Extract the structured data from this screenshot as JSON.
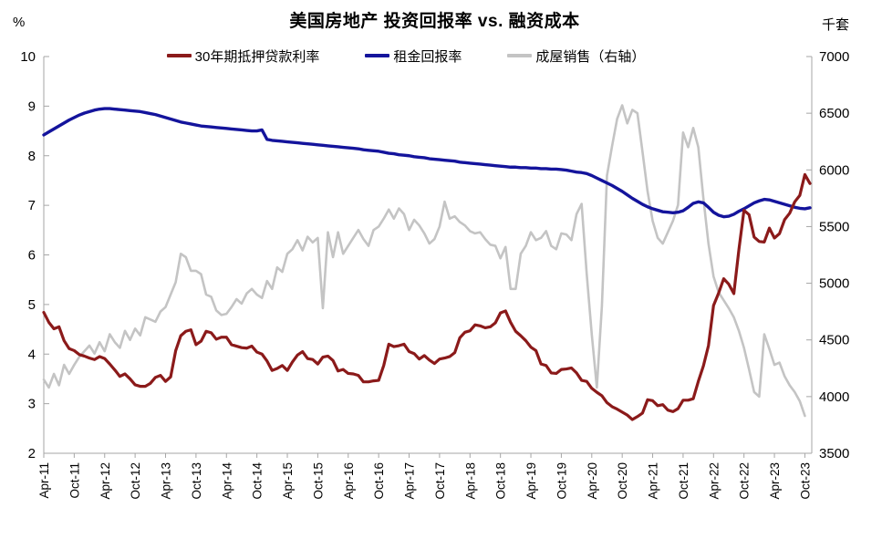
{
  "header": {
    "title": "美国房地产 投资回报率 vs. 融资成本",
    "left_unit": "%",
    "right_unit": "千套"
  },
  "legend": [
    {
      "id": "mortgage-rate",
      "label": "30年期抵押贷款利率",
      "color": "#8B1A1A"
    },
    {
      "id": "rent-yield",
      "label": "租金回报率",
      "color": "#14149C"
    },
    {
      "id": "existing-home-sales",
      "label": "成屋销售（右轴）",
      "color": "#C4C4C4"
    }
  ],
  "colors": {
    "axis": "#A6A6A6",
    "text": "#000000",
    "background": "#FFFFFF"
  },
  "chart_data": {
    "type": "line",
    "title": "美国房地产 投资回报率 vs. 融资成本",
    "x_frequency": "monthly",
    "x_start": "2011-04",
    "x_end": "2023-11",
    "x_tick_every_n_months": 6,
    "x_tick_labels": [
      "Apr-11",
      "Oct-11",
      "Apr-12",
      "Oct-12",
      "Apr-13",
      "Oct-13",
      "Apr-14",
      "Oct-14",
      "Apr-15",
      "Oct-15",
      "Apr-16",
      "Oct-16",
      "Apr-17",
      "Oct-17",
      "Apr-18",
      "Oct-18",
      "Apr-19",
      "Oct-19",
      "Apr-20",
      "Oct-20",
      "Apr-21",
      "Oct-21",
      "Apr-22",
      "Oct-22",
      "Apr-23",
      "Oct-23"
    ],
    "left_axis": {
      "unit": "%",
      "min": 2,
      "max": 10,
      "ticks": [
        10,
        9,
        8,
        7,
        6,
        5,
        4,
        3,
        2
      ]
    },
    "right_axis": {
      "unit": "千套",
      "min": 3500,
      "max": 7000,
      "ticks": [
        7000,
        6500,
        6000,
        5500,
        5000,
        4500,
        4000,
        3500
      ]
    },
    "grid": false,
    "legend_position": "top",
    "series": [
      {
        "name": "30年期抵押贷款利率",
        "axis": "left",
        "color": "#8B1A1A",
        "stroke_width": 3.2,
        "z": 3,
        "values": [
          4.84,
          4.64,
          4.51,
          4.55,
          4.27,
          4.11,
          4.07,
          3.99,
          3.96,
          3.92,
          3.89,
          3.95,
          3.91,
          3.8,
          3.68,
          3.55,
          3.6,
          3.5,
          3.38,
          3.35,
          3.35,
          3.41,
          3.53,
          3.57,
          3.45,
          3.54,
          4.07,
          4.37,
          4.46,
          4.49,
          4.19,
          4.26,
          4.46,
          4.43,
          4.3,
          4.34,
          4.34,
          4.19,
          4.16,
          4.13,
          4.12,
          4.16,
          4.04,
          4.0,
          3.86,
          3.67,
          3.71,
          3.77,
          3.67,
          3.84,
          3.98,
          4.05,
          3.91,
          3.89,
          3.8,
          3.94,
          3.96,
          3.87,
          3.66,
          3.69,
          3.61,
          3.6,
          3.57,
          3.44,
          3.44,
          3.46,
          3.47,
          3.77,
          4.2,
          4.15,
          4.17,
          4.2,
          4.05,
          4.01,
          3.9,
          3.97,
          3.88,
          3.81,
          3.9,
          3.92,
          3.95,
          4.03,
          4.33,
          4.44,
          4.47,
          4.59,
          4.57,
          4.53,
          4.55,
          4.63,
          4.83,
          4.87,
          4.64,
          4.46,
          4.37,
          4.27,
          4.14,
          4.07,
          3.8,
          3.77,
          3.62,
          3.61,
          3.69,
          3.7,
          3.72,
          3.62,
          3.47,
          3.45,
          3.31,
          3.23,
          3.16,
          3.02,
          2.94,
          2.89,
          2.83,
          2.77,
          2.68,
          2.74,
          2.81,
          3.08,
          3.06,
          2.96,
          2.98,
          2.87,
          2.84,
          2.9,
          3.07,
          3.07,
          3.1,
          3.45,
          3.76,
          4.17,
          4.98,
          5.23,
          5.52,
          5.41,
          5.22,
          6.11,
          6.9,
          6.81,
          6.36,
          6.27,
          6.26,
          6.54,
          6.34,
          6.43,
          6.71,
          6.84,
          7.07,
          7.2,
          7.62,
          7.44
        ]
      },
      {
        "name": "租金回报率",
        "axis": "left",
        "color": "#14149C",
        "stroke_width": 3.4,
        "z": 2,
        "values": [
          8.42,
          8.48,
          8.54,
          8.6,
          8.66,
          8.72,
          8.77,
          8.82,
          8.86,
          8.89,
          8.92,
          8.94,
          8.95,
          8.95,
          8.94,
          8.93,
          8.92,
          8.91,
          8.9,
          8.89,
          8.87,
          8.85,
          8.83,
          8.8,
          8.77,
          8.74,
          8.71,
          8.68,
          8.66,
          8.64,
          8.62,
          8.6,
          8.59,
          8.58,
          8.57,
          8.56,
          8.55,
          8.54,
          8.53,
          8.52,
          8.51,
          8.5,
          8.5,
          8.52,
          8.33,
          8.31,
          8.3,
          8.29,
          8.28,
          8.27,
          8.26,
          8.25,
          8.24,
          8.23,
          8.22,
          8.21,
          8.2,
          8.19,
          8.18,
          8.17,
          8.16,
          8.15,
          8.14,
          8.12,
          8.11,
          8.1,
          8.09,
          8.07,
          8.05,
          8.04,
          8.02,
          8.01,
          8.0,
          7.98,
          7.97,
          7.96,
          7.94,
          7.93,
          7.92,
          7.91,
          7.9,
          7.89,
          7.87,
          7.86,
          7.85,
          7.84,
          7.83,
          7.82,
          7.81,
          7.8,
          7.79,
          7.78,
          7.77,
          7.77,
          7.76,
          7.76,
          7.75,
          7.75,
          7.74,
          7.74,
          7.73,
          7.73,
          7.72,
          7.71,
          7.69,
          7.67,
          7.66,
          7.64,
          7.6,
          7.55,
          7.5,
          7.45,
          7.4,
          7.34,
          7.28,
          7.21,
          7.14,
          7.08,
          7.02,
          6.97,
          6.93,
          6.9,
          6.87,
          6.86,
          6.85,
          6.86,
          6.89,
          6.96,
          7.04,
          7.07,
          7.05,
          6.96,
          6.86,
          6.8,
          6.77,
          6.78,
          6.82,
          6.88,
          6.93,
          6.99,
          7.05,
          7.09,
          7.12,
          7.11,
          7.08,
          7.05,
          7.02,
          6.99,
          6.96,
          6.94,
          6.93,
          6.95
        ]
      },
      {
        "name": "成屋销售（右轴）",
        "axis": "right",
        "color": "#C4C4C4",
        "stroke_width": 2.6,
        "z": 1,
        "values": [
          4150,
          4080,
          4200,
          4100,
          4280,
          4200,
          4280,
          4350,
          4400,
          4450,
          4380,
          4480,
          4400,
          4550,
          4480,
          4430,
          4580,
          4500,
          4600,
          4540,
          4700,
          4680,
          4660,
          4750,
          4790,
          4900,
          5010,
          5260,
          5230,
          5110,
          5110,
          5080,
          4900,
          4880,
          4760,
          4720,
          4730,
          4790,
          4860,
          4820,
          4910,
          4950,
          4900,
          4870,
          5020,
          4950,
          5140,
          5100,
          5260,
          5300,
          5380,
          5290,
          5410,
          5360,
          5400,
          4780,
          5450,
          5230,
          5450,
          5260,
          5330,
          5400,
          5470,
          5390,
          5330,
          5470,
          5500,
          5570,
          5650,
          5570,
          5660,
          5610,
          5470,
          5560,
          5510,
          5440,
          5350,
          5390,
          5500,
          5720,
          5570,
          5590,
          5540,
          5510,
          5460,
          5440,
          5450,
          5390,
          5340,
          5330,
          5220,
          5320,
          4950,
          4950,
          5260,
          5330,
          5450,
          5380,
          5400,
          5460,
          5330,
          5300,
          5440,
          5430,
          5380,
          5610,
          5700,
          5085,
          4550,
          4080,
          4800,
          5950,
          6210,
          6450,
          6570,
          6410,
          6530,
          6500,
          6160,
          5810,
          5550,
          5400,
          5350,
          5450,
          5550,
          5690,
          6330,
          6200,
          6370,
          6200,
          5750,
          5350,
          5060,
          4920,
          4850,
          4780,
          4700,
          4580,
          4430,
          4240,
          4040,
          4000,
          4550,
          4420,
          4280,
          4300,
          4180,
          4100,
          4040,
          3960,
          3830,
          null
        ]
      }
    ]
  }
}
